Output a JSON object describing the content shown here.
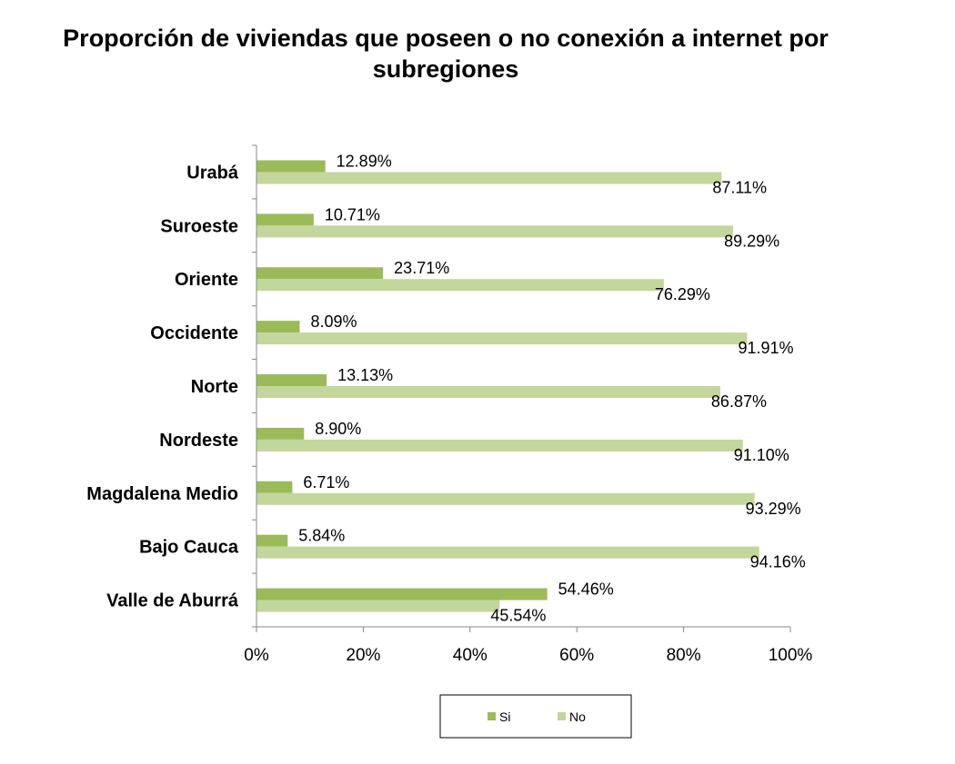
{
  "chart_data": {
    "type": "bar",
    "orientation": "horizontal",
    "title": "Proporción de viviendas que poseen o no conexión a internet por subregiones",
    "categories": [
      "Urabá",
      "Suroeste",
      "Oriente",
      "Occidente",
      "Norte",
      "Nordeste",
      "Magdalena Medio",
      "Bajo Cauca",
      "Valle de Aburrá"
    ],
    "series": [
      {
        "name": "Si",
        "color": "#9BBB59",
        "values": [
          12.89,
          10.71,
          23.71,
          8.09,
          13.13,
          8.9,
          6.71,
          5.84,
          54.46
        ],
        "labels": [
          "12.89%",
          "10.71%",
          "23.71%",
          "8.09%",
          "13.13%",
          "8.90%",
          "6.71%",
          "5.84%",
          "54.46%"
        ]
      },
      {
        "name": "No",
        "color": "#C3D69B",
        "values": [
          87.11,
          89.29,
          76.29,
          91.91,
          86.87,
          91.1,
          93.29,
          94.16,
          45.54
        ],
        "labels": [
          "87.11%",
          "89.29%",
          "76.29%",
          "91.91%",
          "86.87%",
          "91.10%",
          "93.29%",
          "94.16%",
          "45.54%"
        ]
      }
    ],
    "xlim": [
      0,
      100
    ],
    "xticks": [
      "0%",
      "20%",
      "40%",
      "60%",
      "80%",
      "100%"
    ],
    "grid": false,
    "legend_position": "bottom"
  }
}
